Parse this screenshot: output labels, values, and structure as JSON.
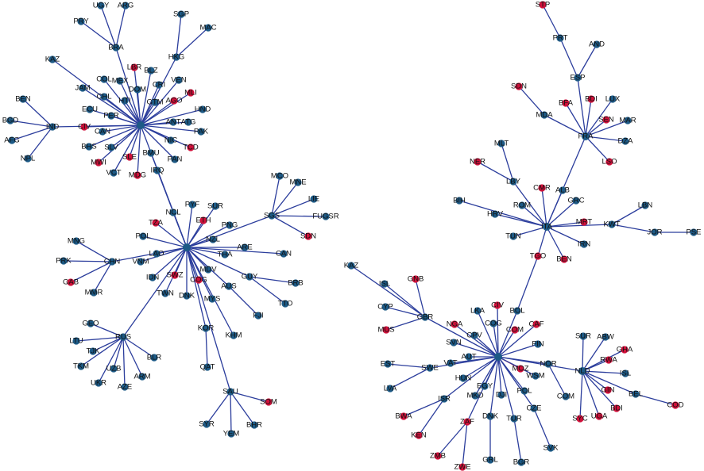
{
  "colors": {
    "blue": "#1d5a86",
    "red": "#d0103a",
    "edge": "#2b3d9c",
    "edge_highlight": "#d03050"
  },
  "nodes": [
    {
      "label": "",
      "color": "blue"
    },
    {
      "label": "",
      "color": "blue"
    },
    {
      "label": "FRA",
      "color": "blue"
    },
    {
      "label": "ITA",
      "color": "blue"
    },
    {
      "label": "",
      "color": "blue"
    },
    {
      "label": "NLD",
      "color": "blue"
    },
    {
      "label": "UGY",
      "color": "blue"
    },
    {
      "label": "ARG",
      "color": "blue"
    },
    {
      "label": "PRY",
      "color": "blue"
    },
    {
      "label": "BRA",
      "color": "blue"
    },
    {
      "label": "SGP",
      "color": "blue"
    },
    {
      "label": "MAC",
      "color": "blue"
    },
    {
      "label": "HKG",
      "color": "blue"
    },
    {
      "label": "KAZ",
      "color": "blue"
    },
    {
      "label": "JAM",
      "color": "blue"
    },
    {
      "label": "LBR",
      "color": "red"
    },
    {
      "label": "BLZ",
      "color": "blue"
    },
    {
      "label": "COL",
      "color": "blue"
    },
    {
      "label": "MEX",
      "color": "blue"
    },
    {
      "label": "DOM",
      "color": "blue"
    },
    {
      "label": "CRI",
      "color": "blue"
    },
    {
      "label": "VEN",
      "color": "blue"
    },
    {
      "label": "MLI",
      "color": "red"
    },
    {
      "label": "CHL",
      "color": "blue"
    },
    {
      "label": "HTI",
      "color": "blue"
    },
    {
      "label": "GTM",
      "color": "blue"
    },
    {
      "label": "AGO",
      "color": "red"
    },
    {
      "label": "HND",
      "color": "blue"
    },
    {
      "label": "ECU",
      "color": "blue"
    },
    {
      "label": "PER",
      "color": "blue"
    },
    {
      "label": "ANT",
      "color": "blue"
    },
    {
      "label": "ATG",
      "color": "blue"
    },
    {
      "label": "PAK",
      "color": "blue"
    },
    {
      "label": "CAN",
      "color": "blue"
    },
    {
      "label": "CIV",
      "color": "red"
    },
    {
      "label": "IND",
      "color": "blue"
    },
    {
      "label": "BGD",
      "color": "blue"
    },
    {
      "label": "BEN",
      "color": "blue"
    },
    {
      "label": "AFG",
      "color": "blue"
    },
    {
      "label": "NPL",
      "color": "blue"
    },
    {
      "label": "BHS",
      "color": "blue"
    },
    {
      "label": "SLV",
      "color": "blue"
    },
    {
      "label": "SLE",
      "color": "red"
    },
    {
      "label": "MWI",
      "color": "red"
    },
    {
      "label": "VCT",
      "color": "blue"
    },
    {
      "label": "MDG",
      "color": "red"
    },
    {
      "label": "NIC",
      "color": "blue"
    },
    {
      "label": "TCD",
      "color": "red"
    },
    {
      "label": "PAN",
      "color": "blue"
    },
    {
      "label": "BMU",
      "color": "blue"
    },
    {
      "label": "IRQ",
      "color": "blue"
    },
    {
      "label": "NCL",
      "color": "blue"
    },
    {
      "label": "PYF",
      "color": "blue"
    },
    {
      "label": "SUR",
      "color": "blue"
    },
    {
      "label": "ETH",
      "color": "red"
    },
    {
      "label": "TZA",
      "color": "red"
    },
    {
      "label": "PNG",
      "color": "blue"
    },
    {
      "label": "POL",
      "color": "blue"
    },
    {
      "label": "NZL",
      "color": "blue"
    },
    {
      "label": "LAO",
      "color": "blue"
    },
    {
      "label": "VNM",
      "color": "blue"
    },
    {
      "label": "ARE",
      "color": "blue"
    },
    {
      "label": "THA",
      "color": "blue"
    },
    {
      "label": "CHN",
      "color": "blue"
    },
    {
      "label": "MNG",
      "color": "blue"
    },
    {
      "label": "PRK",
      "color": "blue"
    },
    {
      "label": "GAB",
      "color": "red"
    },
    {
      "label": "MMR",
      "color": "blue"
    },
    {
      "label": "IDN",
      "color": "blue"
    },
    {
      "label": "SWZ",
      "color": "red"
    },
    {
      "label": "COG",
      "color": "red"
    },
    {
      "label": "MDV",
      "color": "blue"
    },
    {
      "label": "GUY",
      "color": "blue"
    },
    {
      "label": "BRB",
      "color": "blue"
    },
    {
      "label": "AUS",
      "color": "blue"
    },
    {
      "label": "TTO",
      "color": "blue"
    },
    {
      "label": "FJI",
      "color": "blue"
    },
    {
      "label": "TWN",
      "color": "blue"
    },
    {
      "label": "DNK",
      "color": "blue"
    },
    {
      "label": "MYS",
      "color": "blue"
    },
    {
      "label": "CAN",
      "color": "blue"
    },
    {
      "label": "SGS",
      "color": "blue"
    },
    {
      "label": "MCO",
      "color": "blue"
    },
    {
      "label": "MNE",
      "color": "blue"
    },
    {
      "label": "LIE",
      "color": "blue"
    },
    {
      "label": "FUGSR",
      "color": "blue"
    },
    {
      "label": "SDN",
      "color": "red"
    },
    {
      "label": "RUS",
      "color": "blue"
    },
    {
      "label": "GEO",
      "color": "blue"
    },
    {
      "label": "LTU",
      "color": "blue"
    },
    {
      "label": "TJK",
      "color": "blue"
    },
    {
      "label": "TKM",
      "color": "blue"
    },
    {
      "label": "UZB",
      "color": "blue"
    },
    {
      "label": "UKR",
      "color": "blue"
    },
    {
      "label": "AZE",
      "color": "blue"
    },
    {
      "label": "ARM",
      "color": "blue"
    },
    {
      "label": "BLR",
      "color": "blue"
    },
    {
      "label": "KOR",
      "color": "blue"
    },
    {
      "label": "KHM",
      "color": "blue"
    },
    {
      "label": "QAT",
      "color": "blue"
    },
    {
      "label": "SAU",
      "color": "blue"
    },
    {
      "label": "SOM",
      "color": "red"
    },
    {
      "label": "SYR",
      "color": "blue"
    },
    {
      "label": "YEM",
      "color": "blue"
    },
    {
      "label": "BHR",
      "color": "blue"
    },
    {
      "label": "STP",
      "color": "red"
    },
    {
      "label": "PRT",
      "color": "blue"
    },
    {
      "label": "AND",
      "color": "blue"
    },
    {
      "label": "ESP",
      "color": "blue"
    },
    {
      "label": "SDN",
      "color": "red"
    },
    {
      "label": "MDA",
      "color": "blue"
    },
    {
      "label": "BFA",
      "color": "red"
    },
    {
      "label": "BDI",
      "color": "red"
    },
    {
      "label": "LUX",
      "color": "blue"
    },
    {
      "label": "SEN",
      "color": "red"
    },
    {
      "label": "MAR",
      "color": "blue"
    },
    {
      "label": "DZA",
      "color": "blue"
    },
    {
      "label": "LSO",
      "color": "red"
    },
    {
      "label": "MLT",
      "color": "blue"
    },
    {
      "label": "NER",
      "color": "red"
    },
    {
      "label": "LBY",
      "color": "blue"
    },
    {
      "label": "CMR",
      "color": "red"
    },
    {
      "label": "ALB",
      "color": "blue"
    },
    {
      "label": "GRC",
      "color": "blue"
    },
    {
      "label": "BIH",
      "color": "blue"
    },
    {
      "label": "HRV",
      "color": "blue"
    },
    {
      "label": "ROM",
      "color": "blue"
    },
    {
      "label": "MRT",
      "color": "red"
    },
    {
      "label": "KWT",
      "color": "blue"
    },
    {
      "label": "LBN",
      "color": "blue"
    },
    {
      "label": "JOR",
      "color": "blue"
    },
    {
      "label": "PSE",
      "color": "blue"
    },
    {
      "label": "TUN",
      "color": "blue"
    },
    {
      "label": "IRN",
      "color": "blue"
    },
    {
      "label": "TGO",
      "color": "red"
    },
    {
      "label": "BEN",
      "color": "red"
    },
    {
      "label": "KAZ",
      "color": "blue"
    },
    {
      "label": "ISL",
      "color": "blue"
    },
    {
      "label": "GNB",
      "color": "red"
    },
    {
      "label": "CYP",
      "color": "blue"
    },
    {
      "label": "GBR",
      "color": "blue"
    },
    {
      "label": "MUS",
      "color": "red"
    },
    {
      "label": "LKA",
      "color": "blue"
    },
    {
      "label": "CIV",
      "color": "red"
    },
    {
      "label": "BOL",
      "color": "blue"
    },
    {
      "label": "NGA",
      "color": "red"
    },
    {
      "label": "COG",
      "color": "blue"
    },
    {
      "label": "CPV",
      "color": "blue"
    },
    {
      "label": "COM",
      "color": "red"
    },
    {
      "label": "CAF",
      "color": "red"
    },
    {
      "label": "FIN",
      "color": "blue"
    },
    {
      "label": "SVN",
      "color": "blue"
    },
    {
      "label": "AUT",
      "color": "blue"
    },
    {
      "label": "VAT",
      "color": "blue"
    },
    {
      "label": "EST",
      "color": "blue"
    },
    {
      "label": "SWE",
      "color": "blue"
    },
    {
      "label": "LVA",
      "color": "blue"
    },
    {
      "label": "HUN",
      "color": "blue"
    },
    {
      "label": "MOZ",
      "color": "red"
    },
    {
      "label": "WSM",
      "color": "blue"
    },
    {
      "label": "NOR",
      "color": "blue"
    },
    {
      "label": "EGY",
      "color": "blue"
    },
    {
      "label": "POL",
      "color": "blue"
    },
    {
      "label": "MKD",
      "color": "blue"
    },
    {
      "label": "DJI",
      "color": "blue"
    },
    {
      "label": "ISR",
      "color": "blue"
    },
    {
      "label": "CZE",
      "color": "blue"
    },
    {
      "label": "BWA",
      "color": "red"
    },
    {
      "label": "DNK",
      "color": "blue"
    },
    {
      "label": "TUR",
      "color": "blue"
    },
    {
      "label": "ZAF",
      "color": "red"
    },
    {
      "label": "KEN",
      "color": "red"
    },
    {
      "label": "SVK",
      "color": "blue"
    },
    {
      "label": "ZMB",
      "color": "red"
    },
    {
      "label": "GRL",
      "color": "blue"
    },
    {
      "label": "BGR",
      "color": "blue"
    },
    {
      "label": "ZWE",
      "color": "red"
    },
    {
      "label": "SUR",
      "color": "blue"
    },
    {
      "label": "ABW",
      "color": "blue"
    },
    {
      "label": "GHA",
      "color": "red"
    },
    {
      "label": "RWA",
      "color": "red"
    },
    {
      "label": "ISL",
      "color": "blue"
    },
    {
      "label": "GIN",
      "color": "red"
    },
    {
      "label": "BEL",
      "color": "blue"
    },
    {
      "label": "COD",
      "color": "red"
    },
    {
      "label": "COM",
      "color": "blue"
    },
    {
      "label": "SYC",
      "color": "red"
    },
    {
      "label": "UGA",
      "color": "red"
    },
    {
      "label": "BDI",
      "color": "red"
    }
  ],
  "edges": [
    [
      6,
      9
    ],
    [
      7,
      9
    ],
    [
      8,
      9
    ],
    [
      9,
      0
    ],
    [
      10,
      12
    ],
    [
      11,
      12
    ],
    [
      12,
      0
    ],
    [
      13,
      0
    ],
    [
      14,
      0
    ],
    [
      15,
      0
    ],
    [
      16,
      0
    ],
    [
      17,
      0
    ],
    [
      18,
      0
    ],
    [
      19,
      0
    ],
    [
      20,
      0
    ],
    [
      21,
      0
    ],
    [
      22,
      0
    ],
    [
      23,
      0
    ],
    [
      24,
      0
    ],
    [
      25,
      0
    ],
    [
      26,
      0
    ],
    [
      27,
      0
    ],
    [
      28,
      0
    ],
    [
      29,
      0
    ],
    [
      30,
      0
    ],
    [
      31,
      0
    ],
    [
      32,
      0
    ],
    [
      33,
      0
    ],
    [
      34,
      0
    ],
    [
      35,
      0
    ],
    [
      36,
      35
    ],
    [
      37,
      35
    ],
    [
      38,
      35
    ],
    [
      39,
      35
    ],
    [
      40,
      0
    ],
    [
      41,
      0
    ],
    [
      42,
      0
    ],
    [
      43,
      0
    ],
    [
      44,
      0
    ],
    [
      45,
      0
    ],
    [
      46,
      0
    ],
    [
      47,
      0
    ],
    [
      48,
      0
    ],
    [
      49,
      1
    ],
    [
      50,
      1
    ],
    [
      0,
      1
    ],
    [
      51,
      1
    ],
    [
      52,
      1
    ],
    [
      53,
      1
    ],
    [
      54,
      1
    ],
    [
      55,
      1
    ],
    [
      56,
      1
    ],
    [
      57,
      1
    ],
    [
      58,
      1
    ],
    [
      59,
      1
    ],
    [
      60,
      1
    ],
    [
      61,
      1
    ],
    [
      62,
      1
    ],
    [
      63,
      1
    ],
    [
      64,
      63
    ],
    [
      65,
      63
    ],
    [
      66,
      63
    ],
    [
      67,
      63
    ],
    [
      68,
      1
    ],
    [
      69,
      1
    ],
    [
      70,
      1
    ],
    [
      71,
      1
    ],
    [
      72,
      1
    ],
    [
      73,
      72
    ],
    [
      75,
      72
    ],
    [
      74,
      1
    ],
    [
      76,
      74
    ],
    [
      77,
      1
    ],
    [
      78,
      1
    ],
    [
      79,
      1
    ],
    [
      80,
      1
    ],
    [
      81,
      1
    ],
    [
      82,
      81
    ],
    [
      83,
      81
    ],
    [
      84,
      81
    ],
    [
      85,
      81
    ],
    [
      86,
      81
    ],
    [
      87,
      1
    ],
    [
      88,
      87
    ],
    [
      89,
      87
    ],
    [
      90,
      87
    ],
    [
      91,
      87
    ],
    [
      92,
      87
    ],
    [
      93,
      87
    ],
    [
      94,
      87
    ],
    [
      95,
      87
    ],
    [
      96,
      87
    ],
    [
      97,
      1
    ],
    [
      98,
      1
    ],
    [
      99,
      97
    ],
    [
      100,
      1
    ],
    [
      101,
      100
    ],
    [
      102,
      100
    ],
    [
      103,
      100
    ],
    [
      104,
      100
    ],
    [
      105,
      106
    ],
    [
      106,
      108
    ],
    [
      107,
      108
    ],
    [
      108,
      2
    ],
    [
      109,
      110
    ],
    [
      110,
      2
    ],
    [
      111,
      2
    ],
    [
      112,
      2
    ],
    [
      113,
      2
    ],
    [
      114,
      2
    ],
    [
      115,
      2
    ],
    [
      116,
      2
    ],
    [
      117,
      2
    ],
    [
      118,
      120
    ],
    [
      119,
      120
    ],
    [
      120,
      3
    ],
    [
      121,
      3
    ],
    [
      122,
      3
    ],
    [
      2,
      3
    ],
    [
      123,
      3
    ],
    [
      124,
      3
    ],
    [
      125,
      3
    ],
    [
      126,
      3
    ],
    [
      127,
      3
    ],
    [
      128,
      3
    ],
    [
      129,
      128
    ],
    [
      130,
      128
    ],
    [
      131,
      130
    ],
    [
      132,
      3
    ],
    [
      133,
      3
    ],
    [
      134,
      3
    ],
    [
      135,
      3
    ],
    [
      134,
      144
    ],
    [
      144,
      4
    ],
    [
      136,
      140
    ],
    [
      137,
      140
    ],
    [
      138,
      140
    ],
    [
      139,
      140
    ],
    [
      141,
      140
    ],
    [
      140,
      4
    ],
    [
      142,
      4
    ],
    [
      143,
      4
    ],
    [
      145,
      4
    ],
    [
      146,
      4
    ],
    [
      147,
      4
    ],
    [
      148,
      4
    ],
    [
      149,
      4
    ],
    [
      150,
      4
    ],
    [
      151,
      4
    ],
    [
      152,
      4
    ],
    [
      153,
      4
    ],
    [
      154,
      155
    ],
    [
      156,
      155
    ],
    [
      155,
      4
    ],
    [
      157,
      4
    ],
    [
      158,
      4
    ],
    [
      159,
      4
    ],
    [
      160,
      4
    ],
    [
      161,
      4
    ],
    [
      162,
      4
    ],
    [
      163,
      4
    ],
    [
      164,
      4
    ],
    [
      165,
      4
    ],
    [
      167,
      165
    ],
    [
      171,
      165
    ],
    [
      166,
      4
    ],
    [
      172,
      166
    ],
    [
      168,
      4
    ],
    [
      174,
      168
    ],
    [
      169,
      4
    ],
    [
      175,
      169
    ],
    [
      170,
      4
    ],
    [
      173,
      170
    ],
    [
      176,
      170
    ],
    [
      5,
      4
    ],
    [
      177,
      5
    ],
    [
      178,
      5
    ],
    [
      179,
      5
    ],
    [
      180,
      5
    ],
    [
      181,
      5
    ],
    [
      182,
      5
    ],
    [
      183,
      5
    ],
    [
      184,
      183
    ],
    [
      185,
      160
    ],
    [
      186,
      5
    ],
    [
      187,
      5
    ],
    [
      188,
      5
    ]
  ],
  "highlighted_edges": [
    [
      158,
      4
    ]
  ]
}
